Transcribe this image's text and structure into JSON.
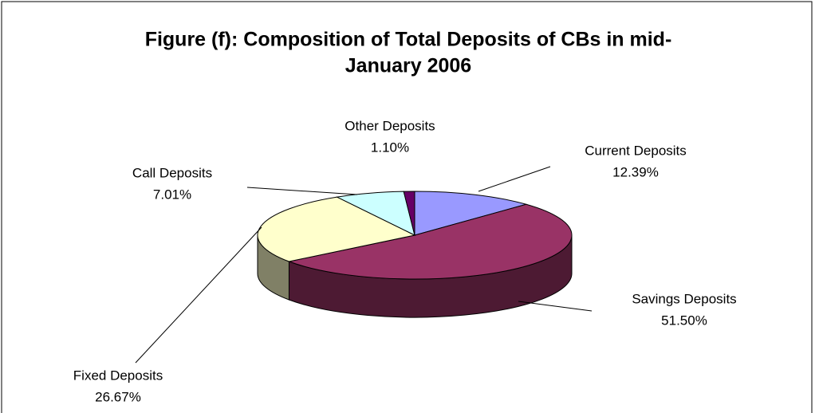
{
  "chart_data": {
    "type": "pie3d",
    "title": [
      "Figure (f): Composition of Total Deposits of CBs in mid-",
      "January  2006"
    ],
    "categories": [
      "Current Deposits",
      "Savings Deposits",
      "Fixed Deposits",
      "Call Deposits",
      "Other Deposits"
    ],
    "values": [
      12.39,
      51.5,
      26.67,
      7.01,
      1.1
    ],
    "value_labels": [
      "12.39%",
      "51.50%",
      "26.67%",
      "7.01%",
      "1.10%"
    ],
    "colors": [
      "#9999ff",
      "#993366",
      "#ffffcc",
      "#ccffff",
      "#660066"
    ]
  }
}
